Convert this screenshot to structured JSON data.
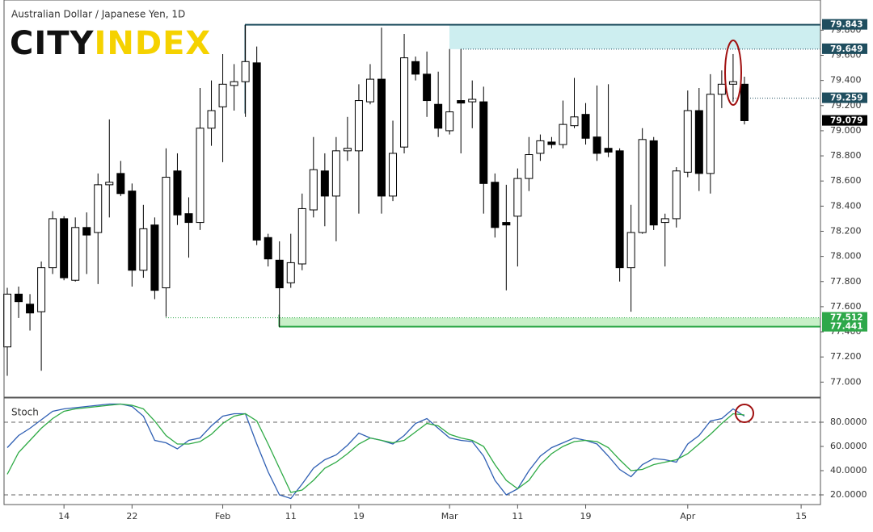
{
  "brand": {
    "part1": "CITY",
    "part2": "INDEX"
  },
  "chart_data": [
    {
      "type": "candlestick",
      "title": "Australian Dollar / Japanese Yen, 1D",
      "categories": [
        null,
        null,
        null,
        null,
        null,
        "14",
        null,
        null,
        null,
        null,
        null,
        "22",
        null,
        null,
        null,
        null,
        null,
        null,
        null,
        "Feb",
        null,
        null,
        null,
        null,
        null,
        "11",
        null,
        null,
        null,
        null,
        null,
        "19",
        null,
        null,
        null,
        null,
        null,
        null,
        null,
        "Mar",
        null,
        null,
        null,
        null,
        null,
        "11",
        null,
        null,
        null,
        null,
        null,
        "19",
        null,
        null,
        null,
        null,
        null,
        null,
        null,
        null,
        "Apr",
        null,
        null,
        null,
        null,
        null,
        null,
        null,
        null,
        null,
        "15"
      ],
      "open": [
        77.28,
        77.7,
        77.62,
        77.56,
        77.91,
        78.3,
        77.81,
        78.23,
        78.19,
        78.57,
        78.66,
        78.52,
        77.89,
        78.25,
        77.75,
        78.68,
        78.34,
        78.27,
        79.02,
        79.19,
        79.36,
        79.39,
        79.54,
        78.15,
        77.97,
        77.79,
        77.94,
        78.37,
        78.68,
        78.48,
        78.84,
        78.84,
        79.23,
        79.41,
        78.48,
        78.87,
        79.55,
        79.45,
        79.21,
        79.0,
        79.24,
        79.23,
        79.23,
        78.59,
        78.27,
        78.32,
        78.62,
        78.82,
        78.91,
        78.89,
        79.04,
        79.13,
        78.95,
        78.86,
        78.84,
        77.91,
        78.19,
        78.92,
        78.27,
        78.3,
        78.67,
        79.16,
        78.66,
        79.29,
        79.37,
        79.37,
        null,
        null,
        null,
        null,
        null
      ],
      "high": [
        77.75,
        77.76,
        77.7,
        77.96,
        78.36,
        78.32,
        78.31,
        78.35,
        78.66,
        79.09,
        78.76,
        78.58,
        78.41,
        78.31,
        78.86,
        78.82,
        78.47,
        79.34,
        79.4,
        79.61,
        79.53,
        79.84,
        79.67,
        78.18,
        78.12,
        78.18,
        78.5,
        78.95,
        78.82,
        78.95,
        79.11,
        79.37,
        79.53,
        79.82,
        79.08,
        79.77,
        79.59,
        79.63,
        79.47,
        79.65,
        79.65,
        79.4,
        79.35,
        78.66,
        78.57,
        78.7,
        78.95,
        78.97,
        78.95,
        79.24,
        79.42,
        79.22,
        79.36,
        79.37,
        78.86,
        78.41,
        79.02,
        78.95,
        78.34,
        78.71,
        79.32,
        79.34,
        79.45,
        79.48,
        79.61,
        79.43,
        null,
        null,
        null,
        null,
        null
      ],
      "low": [
        77.05,
        77.51,
        77.41,
        77.09,
        77.86,
        77.81,
        77.8,
        77.86,
        77.78,
        78.31,
        78.48,
        77.76,
        77.83,
        77.66,
        77.52,
        78.25,
        77.99,
        78.21,
        78.88,
        78.75,
        79.16,
        79.11,
        78.09,
        77.92,
        77.44,
        77.75,
        77.89,
        78.31,
        78.24,
        78.12,
        78.76,
        78.34,
        79.21,
        78.34,
        78.44,
        78.82,
        79.4,
        79.11,
        78.95,
        78.97,
        78.82,
        79.02,
        78.34,
        78.15,
        77.73,
        77.92,
        78.52,
        78.76,
        78.86,
        78.86,
        79.02,
        78.89,
        78.76,
        78.79,
        77.8,
        77.56,
        78.18,
        78.21,
        77.92,
        78.23,
        78.63,
        78.52,
        78.5,
        79.18,
        79.23,
        79.05,
        null,
        null,
        null,
        null,
        null
      ],
      "close": [
        77.7,
        77.64,
        77.55,
        77.91,
        78.3,
        77.83,
        78.23,
        78.17,
        78.57,
        78.59,
        78.5,
        77.89,
        78.22,
        77.73,
        78.63,
        78.33,
        78.27,
        79.02,
        79.16,
        79.37,
        79.39,
        79.55,
        78.13,
        77.98,
        77.75,
        77.95,
        78.38,
        78.69,
        78.48,
        78.84,
        78.86,
        79.24,
        79.41,
        78.48,
        78.82,
        79.58,
        79.45,
        79.24,
        79.02,
        79.15,
        79.22,
        79.25,
        78.58,
        78.23,
        78.25,
        78.62,
        78.81,
        78.92,
        78.89,
        79.05,
        79.11,
        78.94,
        78.82,
        78.83,
        77.91,
        78.19,
        78.93,
        78.25,
        78.3,
        78.68,
        79.16,
        78.66,
        79.29,
        79.37,
        79.39,
        79.08,
        null,
        null,
        null,
        null,
        null
      ],
      "up_color": "#ffffff",
      "down_color": "#000000",
      "ylim": [
        76.88,
        80.04
      ],
      "yticks": [
        {
          "value": 77.0,
          "label": "77.000"
        },
        {
          "value": 77.2,
          "label": "77.200"
        },
        {
          "value": 77.4,
          "label": "77.400"
        },
        {
          "value": 77.6,
          "label": "77.600"
        },
        {
          "value": 77.8,
          "label": "77.800"
        },
        {
          "value": 78.0,
          "label": "78.000"
        },
        {
          "value": 78.2,
          "label": "78.200"
        },
        {
          "value": 78.4,
          "label": "78.400"
        },
        {
          "value": 78.6,
          "label": "78.600"
        },
        {
          "value": 78.8,
          "label": "78.800"
        },
        {
          "value": 79.0,
          "label": "79.000"
        },
        {
          "value": 79.2,
          "label": "79.200"
        },
        {
          "value": 79.4,
          "label": "79.400"
        },
        {
          "value": 79.6,
          "label": "79.600"
        },
        {
          "value": 79.8,
          "label": "79.800"
        }
      ],
      "levels": [
        {
          "value": 79.843,
          "color": "#1f4e5f",
          "style": "solid"
        },
        {
          "value": 79.649,
          "color": "#1f4e5f",
          "style": "dotted"
        },
        {
          "value": 79.259,
          "color": "#1f4e5f",
          "style": "dotted"
        },
        {
          "value": 79.079,
          "color": "#000000",
          "style": "none"
        },
        {
          "value": 77.512,
          "color": "#2ea84a",
          "style": "dotted"
        },
        {
          "value": 77.441,
          "color": "#2ea84a",
          "style": "solid"
        }
      ]
    },
    {
      "type": "line",
      "title": "Stoch",
      "series": [
        {
          "name": "%K",
          "color": "#2f5fb3",
          "values": [
            59,
            69,
            75,
            82,
            89,
            91,
            92,
            93,
            94,
            95,
            95,
            93,
            85,
            65,
            63,
            58,
            65,
            67,
            77,
            85,
            87,
            87,
            62,
            39,
            20,
            17,
            29,
            42,
            49,
            53,
            61,
            71,
            67,
            65,
            62,
            69,
            79,
            83,
            75,
            67,
            65,
            64,
            52,
            32,
            20,
            25,
            40,
            52,
            59,
            63,
            67,
            65,
            62,
            52,
            41,
            35,
            45,
            50,
            49,
            47,
            62,
            69,
            81,
            83,
            91,
            85,
            null,
            null,
            null,
            null,
            null
          ]
        },
        {
          "name": "%D",
          "color": "#2eaa45",
          "values": [
            37,
            55,
            65,
            75,
            83,
            89,
            91,
            92,
            93,
            94,
            95,
            94,
            91,
            81,
            69,
            62,
            62,
            64,
            70,
            79,
            85,
            87,
            81,
            62,
            42,
            22,
            24,
            32,
            42,
            47,
            54,
            62,
            67,
            65,
            63,
            65,
            72,
            79,
            77,
            70,
            67,
            65,
            60,
            45,
            32,
            25,
            32,
            45,
            54,
            60,
            64,
            65,
            64,
            59,
            49,
            40,
            41,
            45,
            47,
            49,
            54,
            62,
            70,
            79,
            87,
            86,
            null,
            null,
            null,
            null,
            null
          ]
        }
      ],
      "ylim": [
        12,
        100
      ],
      "yticks": [
        {
          "value": 80,
          "label": "80.0000"
        },
        {
          "value": 60,
          "label": "60.0000"
        },
        {
          "value": 40,
          "label": "40.0000"
        },
        {
          "value": 20,
          "label": "20.0000"
        }
      ]
    }
  ]
}
